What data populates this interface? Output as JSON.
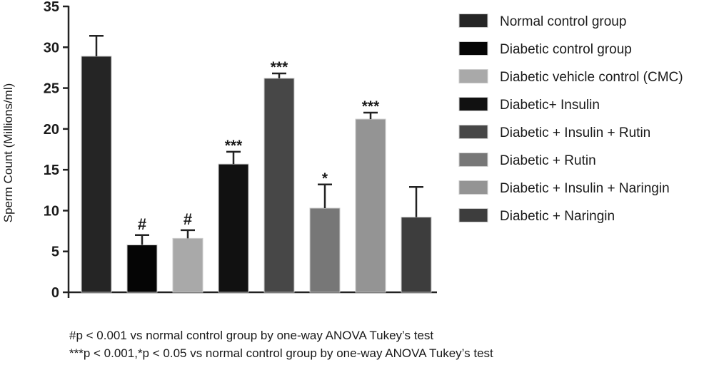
{
  "chart_data": {
    "type": "bar",
    "title": "",
    "xlabel": "",
    "ylabel": "Sperm Count (Millions/ml)",
    "ylim": [
      0,
      35
    ],
    "yticks": [
      0,
      5,
      10,
      15,
      20,
      25,
      30,
      35
    ],
    "legend_position": "right",
    "grid": false,
    "series": [
      {
        "name": "Normal control group",
        "value": 28.9,
        "error": 2.5,
        "annotation": "",
        "color": "#252525"
      },
      {
        "name": "Diabetic control group",
        "value": 5.8,
        "error": 1.2,
        "annotation": "#",
        "color": "#050505"
      },
      {
        "name": "Diabetic vehicle control (CMC)",
        "value": 6.6,
        "error": 1.0,
        "annotation": "#",
        "color": "#a9a9a9"
      },
      {
        "name": "Diabetic+ Insulin",
        "value": 15.7,
        "error": 1.5,
        "annotation": "***",
        "color": "#111111"
      },
      {
        "name": "Diabetic + Insulin + Rutin",
        "value": 26.2,
        "error": 0.6,
        "annotation": "***",
        "color": "#474747"
      },
      {
        "name": "Diabetic + Rutin",
        "value": 10.3,
        "error": 2.9,
        "annotation": "*",
        "color": "#777777"
      },
      {
        "name": "Diabetic + Insulin + Naringin",
        "value": 21.2,
        "error": 0.8,
        "annotation": "***",
        "color": "#949494"
      },
      {
        "name": "Diabetic + Naringin",
        "value": 9.2,
        "error": 3.7,
        "annotation": "",
        "color": "#3d3d3d"
      }
    ]
  },
  "footnotes": {
    "line1": "#p < 0.001 vs normal control group by one-way ANOVA Tukey’s test",
    "line2": "***p < 0.001,*p < 0.05 vs normal control group by one-way ANOVA Tukey’s test"
  }
}
